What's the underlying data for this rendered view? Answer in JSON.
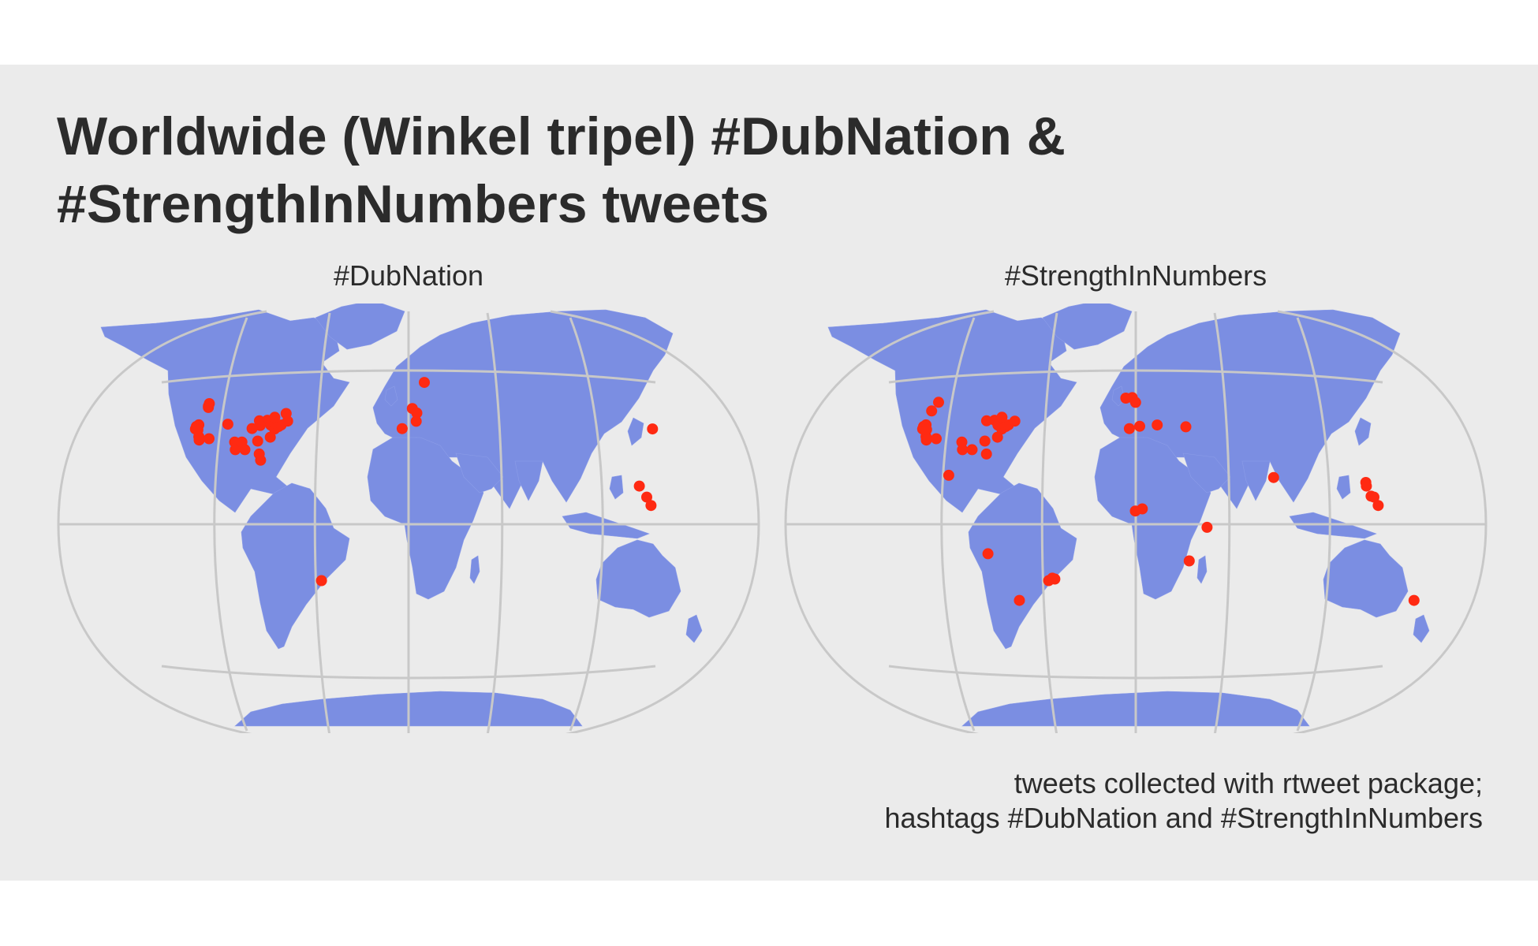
{
  "title": {
    "line1": "Worldwide (Winkel tripel) #DubNation &",
    "line2": "#StrengthInNumbers tweets"
  },
  "caption": {
    "line1": "tweets collected with rtweet package;",
    "line2": "hashtags #DubNation and #StrengthInNumbers"
  },
  "colors": {
    "background": "#ebebeb",
    "land": "#7b8ee2",
    "graticule": "#c8c8c8",
    "point": "#ff2a12",
    "text": "#2b2b2b"
  },
  "projection": "Winkel tripel",
  "facets": [
    {
      "label": "#DubNation",
      "points": [
        {
          "lon": -123,
          "lat": 47
        },
        {
          "lon": -122.5,
          "lat": 46
        },
        {
          "lon": -122,
          "lat": 45.5
        },
        {
          "lon": -122.4,
          "lat": 37.8
        },
        {
          "lon": -122,
          "lat": 37.3
        },
        {
          "lon": -121.5,
          "lat": 38.5
        },
        {
          "lon": -121,
          "lat": 37
        },
        {
          "lon": -120.5,
          "lat": 36.5
        },
        {
          "lon": -122.2,
          "lat": 36.8
        },
        {
          "lon": -118.2,
          "lat": 34
        },
        {
          "lon": -117.2,
          "lat": 32.7
        },
        {
          "lon": -112,
          "lat": 33.5
        },
        {
          "lon": -105,
          "lat": 39.7
        },
        {
          "lon": -97,
          "lat": 32.8
        },
        {
          "lon": -95.3,
          "lat": 29.8
        },
        {
          "lon": -93,
          "lat": 33
        },
        {
          "lon": -90,
          "lat": 30
        },
        {
          "lon": -87.6,
          "lat": 41.9
        },
        {
          "lon": -84.4,
          "lat": 33.7
        },
        {
          "lon": -81.5,
          "lat": 28.5
        },
        {
          "lon": -80,
          "lat": 26
        },
        {
          "lon": -83,
          "lat": 42.3
        },
        {
          "lon": -80,
          "lat": 40.4
        },
        {
          "lon": -77,
          "lat": 38.9
        },
        {
          "lon": -75.2,
          "lat": 40
        },
        {
          "lon": -74,
          "lat": 40.7
        },
        {
          "lon": -71,
          "lat": 42.4
        },
        {
          "lon": -79.4,
          "lat": 43.7
        },
        {
          "lon": -73.5,
          "lat": 45.5
        },
        {
          "lon": -86,
          "lat": 40
        },
        {
          "lon": -90,
          "lat": 38.6
        },
        {
          "lon": -78,
          "lat": 35.5
        },
        {
          "lon": -3.7,
          "lat": 40.4
        },
        {
          "lon": 2.3,
          "lat": 48.9
        },
        {
          "lon": 5,
          "lat": 47
        },
        {
          "lon": 4.5,
          "lat": 43.5
        },
        {
          "lon": 10.7,
          "lat": 59.9
        },
        {
          "lon": 139.7,
          "lat": 35.7
        },
        {
          "lon": 121,
          "lat": 14.6
        },
        {
          "lon": 123.9,
          "lat": 10.3
        },
        {
          "lon": 125.6,
          "lat": 7.1
        },
        {
          "lon": -46.6,
          "lat": -23.5
        }
      ]
    },
    {
      "label": "#StrengthInNumbers",
      "points": [
        {
          "lon": -122.3,
          "lat": 47.6
        },
        {
          "lon": -123,
          "lat": 44
        },
        {
          "lon": -122.4,
          "lat": 37.8
        },
        {
          "lon": -122,
          "lat": 37.3
        },
        {
          "lon": -121.5,
          "lat": 38.5
        },
        {
          "lon": -121,
          "lat": 37
        },
        {
          "lon": -120.5,
          "lat": 36.5
        },
        {
          "lon": -122.2,
          "lat": 36.8
        },
        {
          "lon": -119.8,
          "lat": 36.7
        },
        {
          "lon": -118.2,
          "lat": 34
        },
        {
          "lon": -117.2,
          "lat": 32.7
        },
        {
          "lon": -112,
          "lat": 33.5
        },
        {
          "lon": -97,
          "lat": 32.8
        },
        {
          "lon": -95.3,
          "lat": 29.8
        },
        {
          "lon": -90,
          "lat": 30
        },
        {
          "lon": -87.6,
          "lat": 41.9
        },
        {
          "lon": -84.4,
          "lat": 33.7
        },
        {
          "lon": -81.5,
          "lat": 28.5
        },
        {
          "lon": -83,
          "lat": 42.3
        },
        {
          "lon": -80,
          "lat": 40.4
        },
        {
          "lon": -77,
          "lat": 38.9
        },
        {
          "lon": -75.2,
          "lat": 40
        },
        {
          "lon": -74,
          "lat": 40.7
        },
        {
          "lon": -71,
          "lat": 42.4
        },
        {
          "lon": -79.4,
          "lat": 43.7
        },
        {
          "lon": -78,
          "lat": 35.5
        },
        {
          "lon": -99.1,
          "lat": 19.4
        },
        {
          "lon": -6.3,
          "lat": 53.3
        },
        {
          "lon": -2.2,
          "lat": 53.5
        },
        {
          "lon": -0.1,
          "lat": 51.5
        },
        {
          "lon": -3.7,
          "lat": 40.4
        },
        {
          "lon": 2.3,
          "lat": 41.4
        },
        {
          "lon": 12.5,
          "lat": 41.9
        },
        {
          "lon": 29,
          "lat": 41
        },
        {
          "lon": 72.9,
          "lat": 19.1
        },
        {
          "lon": -0.2,
          "lat": 5.6
        },
        {
          "lon": 3.4,
          "lat": 6.5
        },
        {
          "lon": 36.8,
          "lat": -1.3
        },
        {
          "lon": 28,
          "lat": -15.4
        },
        {
          "lon": 120.9,
          "lat": 14.6
        },
        {
          "lon": 121,
          "lat": 16
        },
        {
          "lon": 123.9,
          "lat": 10.3
        },
        {
          "lon": 125.6,
          "lat": 7.1
        },
        {
          "lon": 122.5,
          "lat": 10.7
        },
        {
          "lon": 153,
          "lat": -27.5
        },
        {
          "lon": -77,
          "lat": -12
        },
        {
          "lon": -43.2,
          "lat": -22.9
        },
        {
          "lon": -46.6,
          "lat": -23.5
        },
        {
          "lon": -44.5,
          "lat": -22.5
        },
        {
          "lon": -64.2,
          "lat": -31.4
        }
      ]
    }
  ]
}
